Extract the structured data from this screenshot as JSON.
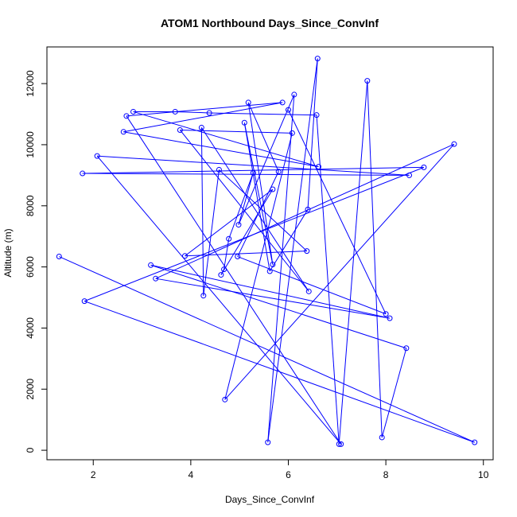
{
  "chart_data": {
    "type": "scatter",
    "title": "ATOM1 Northbound Days_Since_ConvInf",
    "xlabel": "Days_Since_ConvInf",
    "ylabel": "Altitude (m)",
    "xlim": [
      1.05,
      10.2
    ],
    "ylim": [
      -310,
      13200
    ],
    "xticks": [
      2,
      4,
      6,
      8,
      10
    ],
    "yticks": [
      0,
      2000,
      4000,
      6000,
      8000,
      10000,
      12000
    ],
    "grid": false,
    "legend": "none",
    "series": [
      {
        "color": "#0000ff",
        "marker": "open-circle",
        "connected": true,
        "points": [
          [
            1.3,
            6340
          ],
          [
            9.82,
            260
          ],
          [
            1.82,
            4880
          ],
          [
            8.78,
            9260
          ],
          [
            1.78,
            9060
          ],
          [
            8.48,
            9000
          ],
          [
            2.08,
            9630
          ],
          [
            7.08,
            200
          ],
          [
            2.68,
            10940
          ],
          [
            5.88,
            11380
          ],
          [
            2.62,
            10420
          ],
          [
            6.62,
            9280
          ],
          [
            2.82,
            11080
          ],
          [
            3.68,
            11080
          ],
          [
            4.38,
            11040
          ],
          [
            6.58,
            10970
          ],
          [
            7.04,
            200
          ],
          [
            7.62,
            12090
          ],
          [
            7.92,
            420
          ],
          [
            8.42,
            3340
          ],
          [
            3.18,
            6060
          ],
          [
            8.08,
            4320
          ],
          [
            3.28,
            5620
          ],
          [
            9.4,
            10020
          ],
          [
            4.7,
            1660
          ],
          [
            6.08,
            10380
          ],
          [
            3.78,
            10480
          ],
          [
            6.42,
            5200
          ],
          [
            4.22,
            10560
          ],
          [
            4.26,
            5060
          ],
          [
            4.58,
            9180
          ],
          [
            6.38,
            6520
          ],
          [
            3.88,
            6360
          ],
          [
            5.68,
            8540
          ],
          [
            4.62,
            5740
          ],
          [
            4.68,
            5920
          ],
          [
            4.78,
            6920
          ],
          [
            5.28,
            9080
          ],
          [
            4.98,
            7380
          ],
          [
            6.12,
            11640
          ],
          [
            5.58,
            260
          ],
          [
            6.6,
            12820
          ],
          [
            6.4,
            7880
          ],
          [
            5.62,
            5860
          ],
          [
            5.1,
            10720
          ],
          [
            5.68,
            6080
          ],
          [
            5.18,
            11380
          ],
          [
            5.8,
            9120
          ],
          [
            4.96,
            6340
          ],
          [
            8.0,
            4460
          ],
          [
            6.0,
            11140
          ]
        ]
      }
    ]
  }
}
